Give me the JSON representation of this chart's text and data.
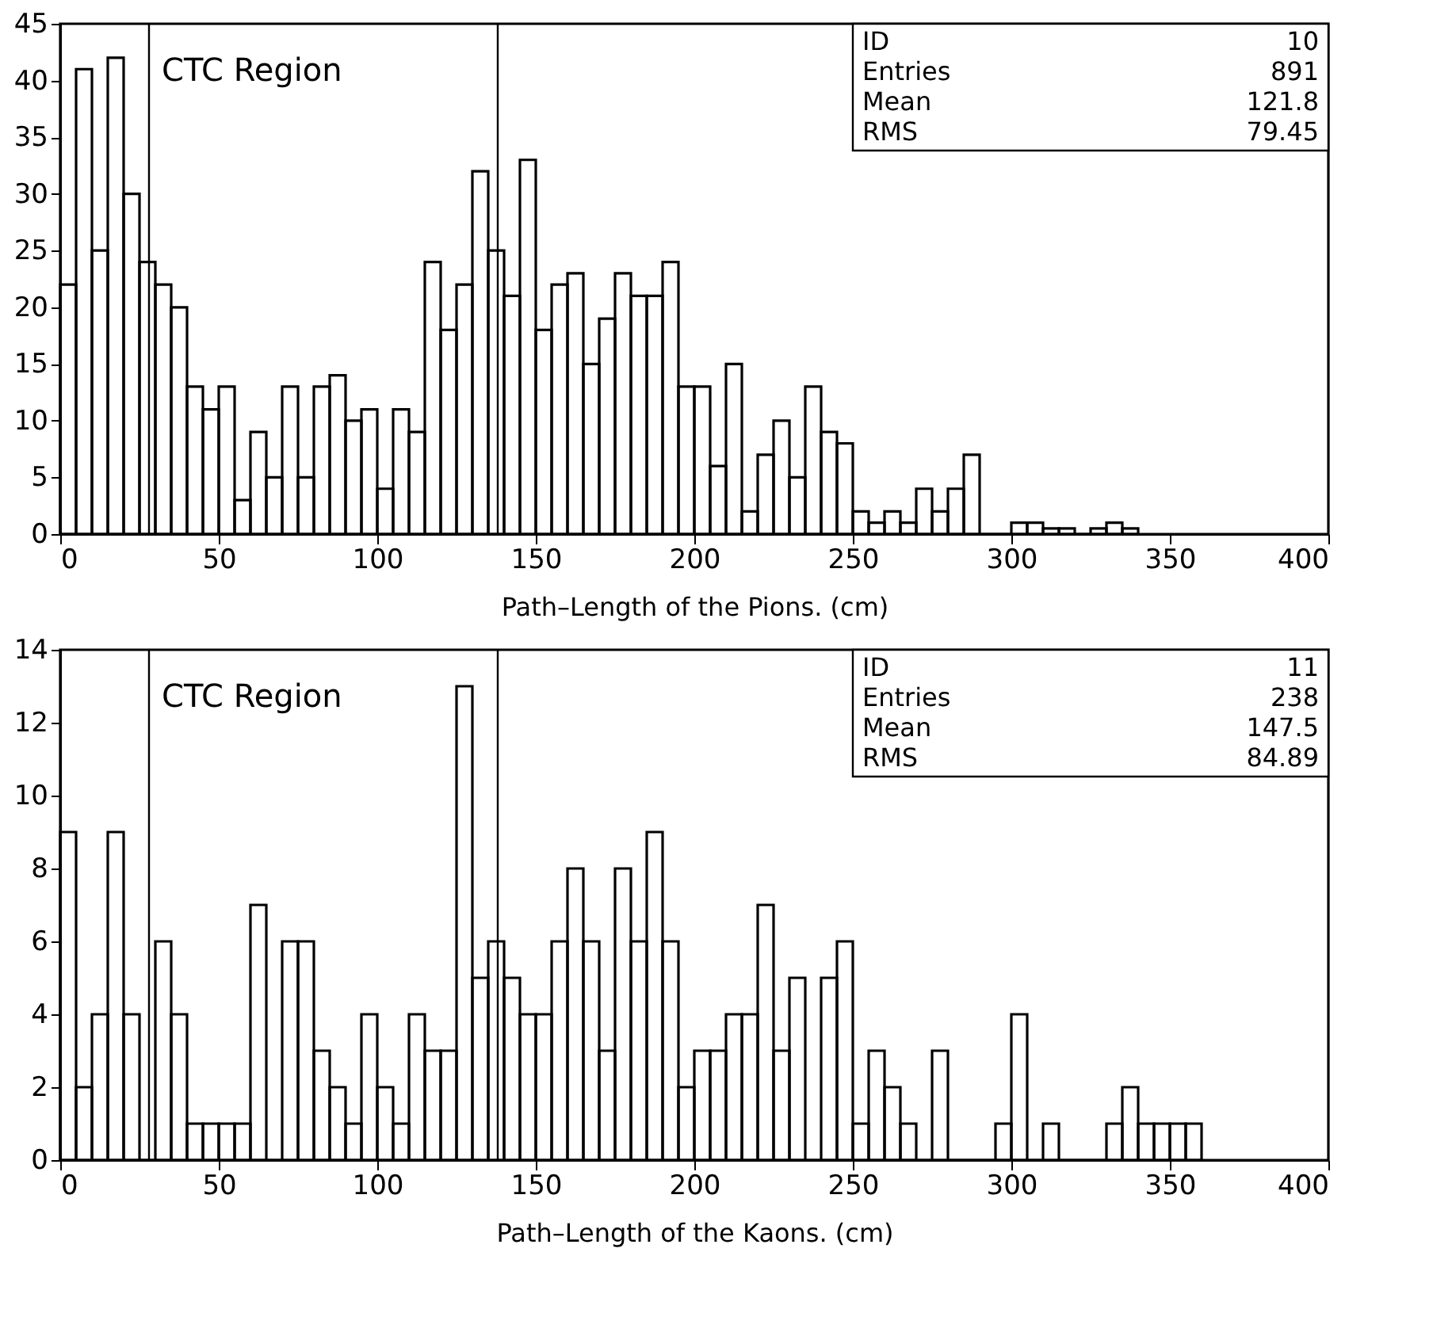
{
  "chart_data": [
    {
      "type": "histogram",
      "xlabel": "Path–Length of the Pions. (cm)",
      "color": "#000000",
      "bins": [
        0,
        5,
        10,
        15,
        20,
        25,
        30,
        35,
        40,
        45,
        50,
        55,
        60,
        65,
        70,
        75,
        80,
        85,
        90,
        95,
        100,
        105,
        110,
        115,
        120,
        125,
        130,
        135,
        140,
        145,
        150,
        155,
        160,
        165,
        170,
        175,
        180,
        185,
        190,
        195,
        200,
        205,
        210,
        215,
        220,
        225,
        230,
        235,
        240,
        245,
        250,
        255,
        260,
        265,
        270,
        275,
        280,
        285,
        290,
        295,
        300,
        305,
        310,
        315,
        320,
        325,
        330,
        335,
        340
      ],
      "values": [
        22,
        41,
        25,
        42,
        30,
        24,
        22,
        20,
        13,
        11,
        13,
        3,
        9,
        5,
        13,
        5,
        13,
        14,
        10,
        11,
        4,
        11,
        9,
        24,
        18,
        22,
        32,
        25,
        21,
        33,
        18,
        22,
        23,
        15,
        19,
        23,
        21,
        21,
        24,
        13,
        13,
        6,
        15,
        2,
        7,
        10,
        5,
        13,
        9,
        8,
        2,
        1,
        2,
        1,
        4,
        2,
        4,
        7,
        0,
        0,
        1,
        1,
        0.5,
        0.5,
        0,
        0.5,
        1,
        0.5
      ],
      "xlim": [
        0,
        400
      ],
      "xticks": [
        0,
        50,
        100,
        150,
        200,
        250,
        300,
        350,
        400
      ],
      "ylim": [
        0,
        45
      ],
      "yticks": [
        0,
        5,
        10,
        15,
        20,
        25,
        30,
        35,
        40,
        45
      ],
      "ref_lines": [
        {
          "axis": "x",
          "value": 28
        },
        {
          "axis": "x",
          "value": 138
        }
      ],
      "annotations": [
        "CTC Region",
        "ID 10",
        "Entries 891",
        "Mean 121.8",
        "RMS 79.45"
      ]
    },
    {
      "type": "histogram",
      "xlabel": "Path–Length of the Kaons. (cm)",
      "color": "#000000",
      "bins": [
        0,
        5,
        10,
        15,
        20,
        25,
        30,
        35,
        40,
        45,
        50,
        55,
        60,
        65,
        70,
        75,
        80,
        85,
        90,
        95,
        100,
        105,
        110,
        115,
        120,
        125,
        130,
        135,
        140,
        145,
        150,
        155,
        160,
        165,
        170,
        175,
        180,
        185,
        190,
        195,
        200,
        205,
        210,
        215,
        220,
        225,
        230,
        235,
        240,
        245,
        250,
        255,
        260,
        265,
        270,
        275,
        280,
        285,
        290,
        295,
        300,
        305,
        310,
        315,
        320,
        325,
        330,
        335,
        340,
        345,
        350,
        355,
        360
      ],
      "values": [
        9,
        2,
        4,
        9,
        4,
        0,
        6,
        4,
        1,
        1,
        1,
        1,
        7,
        0,
        6,
        6,
        3,
        2,
        1,
        4,
        2,
        1,
        4,
        3,
        3,
        13,
        5,
        6,
        5,
        4,
        4,
        6,
        8,
        6,
        3,
        8,
        6,
        9,
        6,
        2,
        3,
        3,
        4,
        4,
        7,
        3,
        5,
        0,
        5,
        6,
        1,
        3,
        2,
        1,
        0,
        3,
        0,
        0,
        0,
        1,
        4,
        0,
        1,
        0,
        0,
        0,
        1,
        2,
        1,
        1,
        1,
        1
      ],
      "xlim": [
        0,
        400
      ],
      "xticks": [
        0,
        50,
        100,
        150,
        200,
        250,
        300,
        350,
        400
      ],
      "ylim": [
        0,
        14
      ],
      "yticks": [
        0,
        2,
        4,
        6,
        8,
        10,
        12,
        14
      ],
      "ref_lines": [
        {
          "axis": "x",
          "value": 28
        },
        {
          "axis": "x",
          "value": 138
        }
      ],
      "annotations": [
        "CTC Region",
        "ID 11",
        "Entries 238",
        "Mean 147.5",
        "RMS 84.89"
      ]
    }
  ]
}
